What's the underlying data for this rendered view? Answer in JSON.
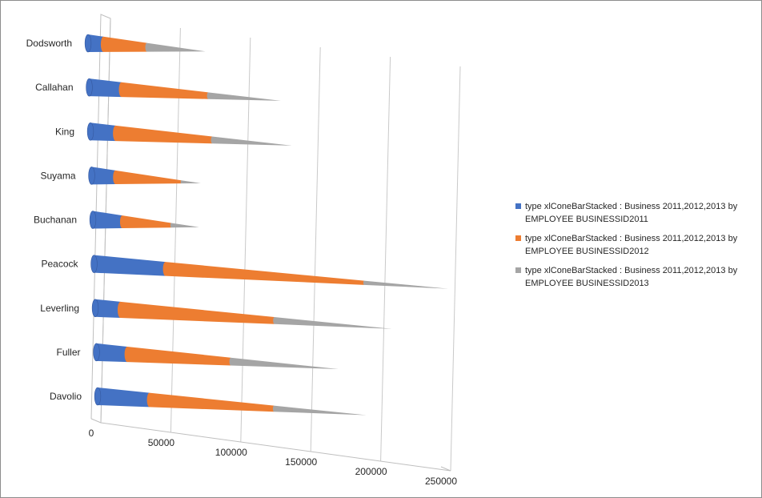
{
  "chart_data": {
    "type": "bar",
    "orientation": "horizontal",
    "stacked": true,
    "mark": "cone",
    "categories": [
      "Dodsworth",
      "Callahan",
      "King",
      "Suyama",
      "Buchanan",
      "Peacock",
      "Leverling",
      "Fuller",
      "Davolio"
    ],
    "series": [
      {
        "name": "type xlConeBarStacked : Business 2011,2012,2013 by EMPLOYEE  BUSINESSID2011",
        "color": "#4472c4",
        "values": [
          11000,
          23000,
          18000,
          17000,
          21000,
          51000,
          18000,
          22000,
          37000
        ]
      },
      {
        "name": "type xlConeBarStacked : Business 2011,2012,2013 by EMPLOYEE  BUSINESSID2012",
        "color": "#ed7d31",
        "values": [
          31000,
          62000,
          69000,
          47000,
          35000,
          142000,
          110000,
          74000,
          89000
        ]
      },
      {
        "name": "type xlConeBarStacked : Business 2011,2012,2013 by EMPLOYEE  BUSINESSID2013",
        "color": "#a5a5a5",
        "values": [
          42000,
          52000,
          57000,
          14000,
          20000,
          60000,
          84000,
          77000,
          66000
        ]
      }
    ],
    "xaxis_ticks": [
      "0",
      "50000",
      "100000",
      "150000",
      "200000",
      "250000"
    ],
    "xlim": [
      0,
      250000
    ],
    "gridlines": true,
    "legend_position": "right"
  }
}
